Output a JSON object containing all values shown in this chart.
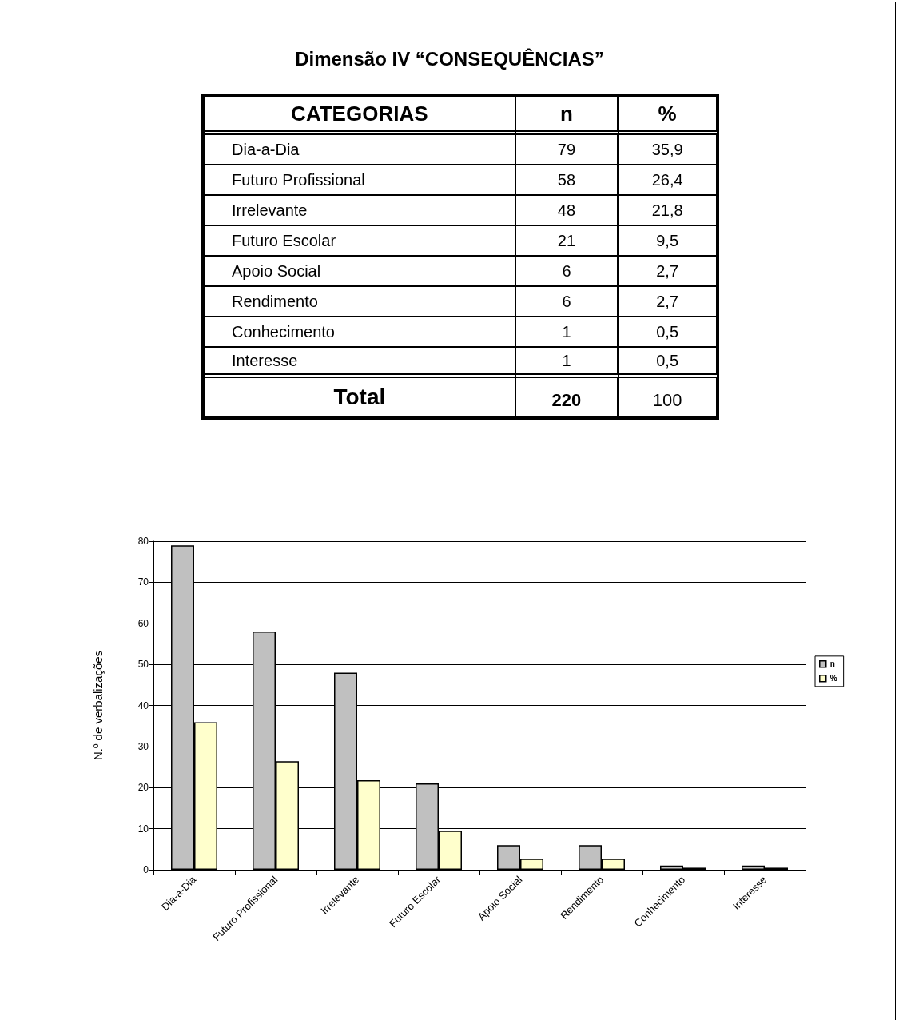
{
  "chart_data": [
    {
      "type": "other",
      "title": "Dimensão IV “CONSEQUÊNCIAS”",
      "annotations": [
        "CATEGORIAS",
        "n",
        "%",
        "Dia-a-Dia",
        "79",
        "35,9",
        "Futuro Profissional",
        "58",
        "26,4",
        "Irrelevante",
        "48",
        "21,8",
        "Futuro Escolar",
        "21",
        "9,5",
        "Apoio Social",
        "6",
        "2,7",
        "Rendimento",
        "6",
        "2,7",
        "Conhecimento",
        "1",
        "0,5",
        "Interesse",
        "1",
        "0,5",
        "Total",
        "220",
        "100"
      ]
    },
    {
      "type": "bar",
      "ylabel": "N.º de verbalizações",
      "categories": [
        "Dia-a-Dia",
        "Futuro Profissional",
        "Irrelevante",
        "Futuro Escolar",
        "Apoio Social",
        "Rendimento",
        "Conhecimento",
        "Interesse"
      ],
      "series": [
        {
          "name": "n",
          "color": "#c0c0c0",
          "values": [
            79,
            58,
            48,
            21,
            6,
            6,
            1,
            1
          ]
        },
        {
          "name": "%",
          "color": "#ffffcc",
          "values": [
            35.9,
            26.4,
            21.8,
            9.5,
            2.7,
            2.7,
            0.5,
            0.5
          ]
        }
      ],
      "ylim": [
        0,
        80
      ],
      "yticks": [
        0,
        10,
        20,
        30,
        40,
        50,
        60,
        70,
        80
      ],
      "grid": "y",
      "legend": "right"
    }
  ]
}
